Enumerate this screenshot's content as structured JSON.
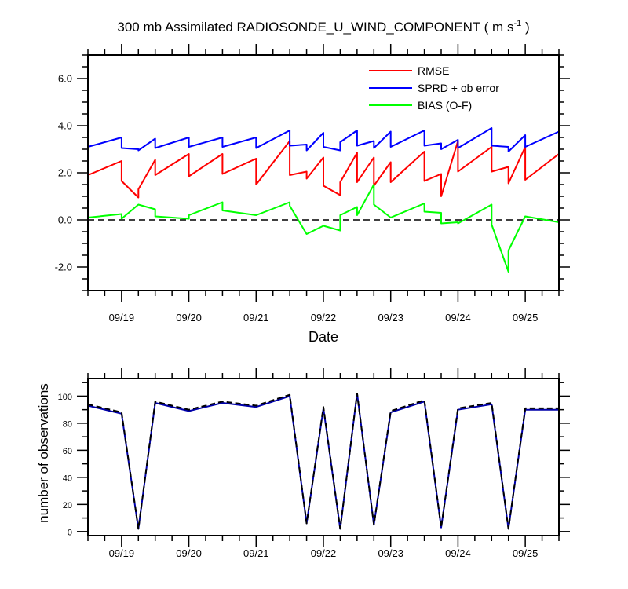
{
  "chart_data": [
    {
      "type": "line",
      "title_main": "300 mb Assimilated RADIOSONDE_U_WIND_COMPONENT ( m s",
      "title_sup": "-1",
      "title_end": " )",
      "xlabel": "Date",
      "ylabel": "",
      "xlim": [
        -0.5,
        6.5
      ],
      "ylim": [
        -3.0,
        7.0
      ],
      "x_ticks": [
        0,
        1,
        2,
        3,
        4,
        5,
        6
      ],
      "x_tick_labels": [
        "09/19",
        "09/20",
        "09/21",
        "09/22",
        "09/23",
        "09/24",
        "09/25"
      ],
      "y_ticks": [
        -2.0,
        0.0,
        2.0,
        4.0,
        6.0
      ],
      "y_tick_labels": [
        "-2.0",
        "0.0",
        "2.0",
        "4.0",
        "6.0"
      ],
      "reference_line": 0.0,
      "legend": [
        "RMSE",
        "SPRD + ob error",
        "BIAS (O-F)"
      ],
      "series": [
        {
          "name": "RMSE",
          "color": "#ff0000",
          "segments": [
            [
              [
                -0.5,
                1.9
              ],
              [
                0.0,
                2.5
              ],
              [
                0.0,
                1.65
              ],
              [
                0.25,
                0.95
              ],
              [
                0.25,
                1.3
              ],
              [
                0.5,
                2.55
              ],
              [
                0.5,
                1.9
              ],
              [
                1.0,
                2.8
              ],
              [
                1.0,
                1.85
              ],
              [
                1.5,
                2.8
              ],
              [
                1.5,
                1.95
              ],
              [
                2.0,
                2.6
              ],
              [
                2.0,
                1.5
              ],
              [
                2.5,
                3.35
              ],
              [
                2.5,
                1.9
              ],
              [
                2.75,
                2.05
              ],
              [
                2.75,
                1.75
              ],
              [
                3.0,
                2.65
              ],
              [
                3.0,
                1.45
              ],
              [
                3.25,
                1.05
              ],
              [
                3.25,
                1.6
              ],
              [
                3.5,
                2.85
              ],
              [
                3.5,
                1.6
              ],
              [
                3.75,
                2.65
              ],
              [
                3.75,
                1.45
              ],
              [
                4.0,
                2.45
              ],
              [
                4.0,
                1.6
              ],
              [
                4.5,
                2.9
              ],
              [
                4.5,
                1.65
              ],
              [
                4.75,
                1.95
              ],
              [
                4.75,
                1.0
              ],
              [
                5.0,
                3.35
              ],
              [
                5.0,
                2.05
              ],
              [
                5.5,
                3.1
              ],
              [
                5.5,
                2.05
              ],
              [
                5.75,
                2.25
              ],
              [
                5.75,
                1.55
              ],
              [
                6.0,
                3.1
              ],
              [
                6.0,
                1.7
              ],
              [
                6.5,
                2.8
              ]
            ]
          ]
        },
        {
          "name": "SPRD + ob error",
          "color": "#0000ff",
          "segments": [
            [
              [
                -0.5,
                3.1
              ],
              [
                0.0,
                3.5
              ],
              [
                0.0,
                3.05
              ],
              [
                0.25,
                3.0
              ],
              [
                0.25,
                2.95
              ],
              [
                0.5,
                3.45
              ],
              [
                0.5,
                3.05
              ],
              [
                1.0,
                3.5
              ],
              [
                1.0,
                3.1
              ],
              [
                1.5,
                3.5
              ],
              [
                1.5,
                3.1
              ],
              [
                2.0,
                3.5
              ],
              [
                2.0,
                3.05
              ],
              [
                2.5,
                3.8
              ],
              [
                2.5,
                3.15
              ],
              [
                2.75,
                3.2
              ],
              [
                2.75,
                2.95
              ],
              [
                3.0,
                3.7
              ],
              [
                3.0,
                3.1
              ],
              [
                3.25,
                2.95
              ],
              [
                3.25,
                3.3
              ],
              [
                3.5,
                3.8
              ],
              [
                3.5,
                3.15
              ],
              [
                3.75,
                3.35
              ],
              [
                3.75,
                3.05
              ],
              [
                4.0,
                3.75
              ],
              [
                4.0,
                3.1
              ],
              [
                4.5,
                3.8
              ],
              [
                4.5,
                3.15
              ],
              [
                4.75,
                3.25
              ],
              [
                4.75,
                3.0
              ],
              [
                5.0,
                3.4
              ],
              [
                5.0,
                3.05
              ],
              [
                5.5,
                3.9
              ],
              [
                5.5,
                3.15
              ],
              [
                5.75,
                3.1
              ],
              [
                5.75,
                2.9
              ],
              [
                6.0,
                3.6
              ],
              [
                6.0,
                3.1
              ],
              [
                6.5,
                3.75
              ]
            ]
          ]
        },
        {
          "name": "BIAS (O-F)",
          "color": "#00ff00",
          "segments": [
            [
              [
                -0.5,
                0.1
              ],
              [
                0.0,
                0.25
              ],
              [
                0.0,
                0.05
              ],
              [
                0.25,
                0.65
              ],
              [
                0.5,
                0.45
              ],
              [
                0.5,
                0.15
              ],
              [
                1.0,
                0.05
              ],
              [
                1.0,
                0.2
              ],
              [
                1.5,
                0.75
              ],
              [
                1.5,
                0.4
              ],
              [
                2.0,
                0.2
              ],
              [
                2.5,
                0.75
              ],
              [
                2.5,
                0.6
              ],
              [
                2.75,
                -0.6
              ],
              [
                3.0,
                -0.25
              ],
              [
                3.25,
                -0.45
              ],
              [
                3.25,
                0.2
              ],
              [
                3.5,
                0.55
              ],
              [
                3.5,
                0.2
              ],
              [
                3.75,
                1.5
              ],
              [
                3.75,
                0.65
              ],
              [
                4.0,
                0.1
              ],
              [
                4.5,
                0.7
              ],
              [
                4.5,
                0.35
              ],
              [
                4.75,
                0.3
              ],
              [
                4.75,
                -0.15
              ],
              [
                5.0,
                -0.1
              ],
              [
                5.0,
                -0.15
              ],
              [
                5.5,
                0.65
              ],
              [
                5.5,
                -0.2
              ],
              [
                5.75,
                -2.2
              ],
              [
                5.75,
                -1.3
              ],
              [
                6.0,
                0.15
              ],
              [
                6.5,
                -0.1
              ]
            ]
          ]
        }
      ]
    },
    {
      "type": "line",
      "title": "",
      "xlabel": "",
      "ylabel": "number of observations",
      "xlim": [
        -0.5,
        6.5
      ],
      "ylim": [
        -3,
        113
      ],
      "x_ticks": [
        0,
        1,
        2,
        3,
        4,
        5,
        6
      ],
      "x_tick_labels": [
        "09/19",
        "09/20",
        "09/21",
        "09/22",
        "09/23",
        "09/24",
        "09/25"
      ],
      "y_ticks": [
        0,
        20,
        40,
        60,
        80,
        100
      ],
      "y_tick_labels": [
        "0",
        "20",
        "40",
        "60",
        "80",
        "100"
      ],
      "series": [
        {
          "name": "number of observations (solid)",
          "color": "#0000aa",
          "dash": "solid",
          "x": [
            -0.5,
            0.0,
            0.25,
            0.5,
            1.0,
            1.5,
            2.0,
            2.5,
            2.75,
            3.0,
            3.25,
            3.5,
            3.75,
            4.0,
            4.5,
            4.75,
            5.0,
            5.5,
            5.75,
            6.0,
            6.5
          ],
          "y": [
            93,
            87,
            2,
            95,
            89,
            95,
            92,
            100,
            6,
            91,
            2,
            102,
            5,
            88,
            96,
            3,
            90,
            94,
            2,
            90,
            90
          ]
        },
        {
          "name": "number of observations (dashed)",
          "color": "#000000",
          "dash": "dashed",
          "x": [
            -0.5,
            0.0,
            0.25,
            0.5,
            1.0,
            1.5,
            2.0,
            2.5,
            2.75,
            3.0,
            3.25,
            3.5,
            3.75,
            4.0,
            4.5,
            4.75,
            5.0,
            5.5,
            5.75,
            6.0,
            6.5
          ],
          "y": [
            94,
            88,
            2,
            96,
            90,
            96,
            93,
            101,
            6,
            92,
            2,
            102,
            5,
            89,
            97,
            3,
            91,
            95,
            2,
            91,
            91
          ]
        }
      ]
    }
  ]
}
